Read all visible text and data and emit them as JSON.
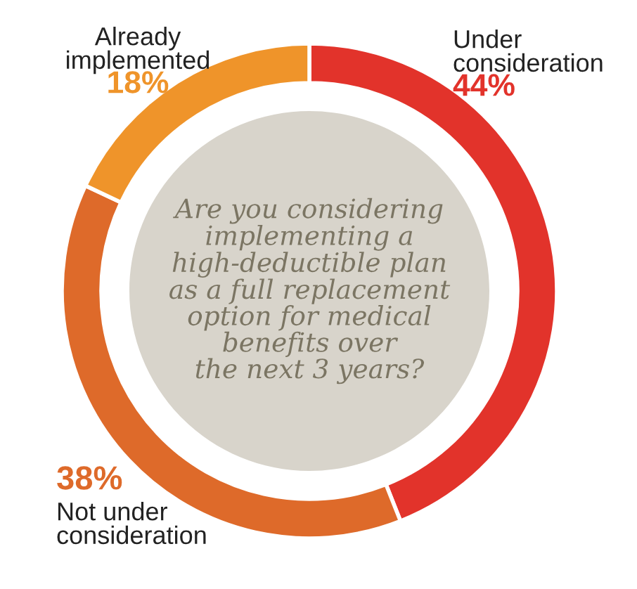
{
  "chart_data": {
    "type": "donut",
    "title": "Are you considering\nimplementing a\nhigh-deductible plan\nas a full replacement\noption for medical\nbenefits over\nthe next 3 years?",
    "categories": [
      "Under\nconsideration",
      "Not under\nconsideration",
      "Already\nimplemented"
    ],
    "values": [
      44,
      38,
      18
    ],
    "colors": [
      "#e2332b",
      "#de6a2a",
      "#ef942a"
    ],
    "value_labels": [
      "44%",
      "38%",
      "18%"
    ],
    "legend": false
  }
}
